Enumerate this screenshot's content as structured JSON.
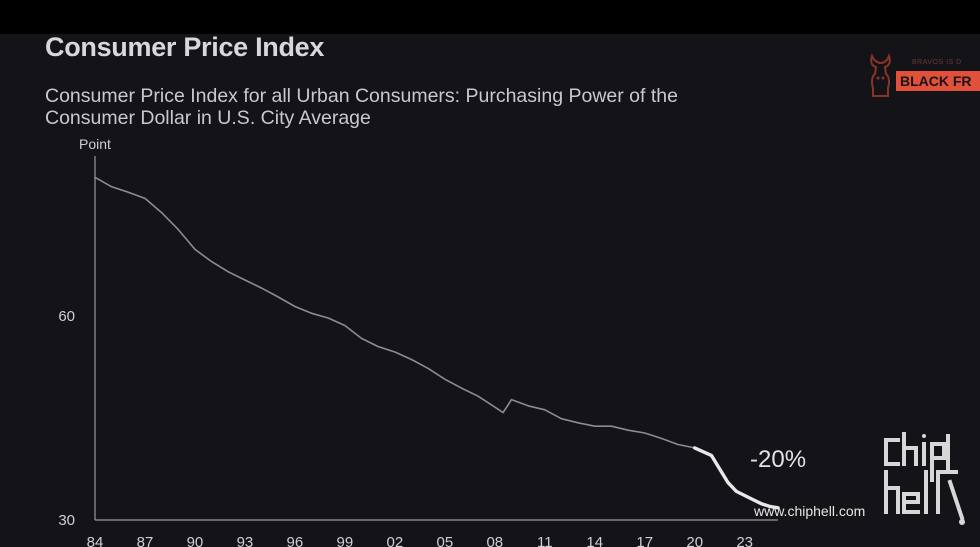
{
  "title": "Consumer Price Index",
  "subtitle": "Consumer Price Index for all Urban Consumers: Purchasing Power of the Consumer Dollar in U.S. City Average",
  "logo": {
    "small_text": "BRAVOS IS D",
    "banner_text": "BLACK FR"
  },
  "watermark": {
    "url": "www.chiphell.com",
    "mark_text": "chip hell"
  },
  "colors": {
    "background": "#141418",
    "line": "#8c8c90",
    "line_highlight": "#e8e8ea",
    "axis": "#9a9a9e",
    "text": "#d0d0d4",
    "logo_accent": "#e0503a"
  },
  "chart_data": {
    "type": "line",
    "title": "Consumer Price Index",
    "subtitle": "Consumer Price Index for all Urban Consumers: Purchasing Power of the Consumer Dollar in U.S. City Average",
    "ylabel": "Point",
    "xlabel": "",
    "yticks": [
      60,
      30
    ],
    "xticks": [
      "84",
      "87",
      "90",
      "93",
      "96",
      "99",
      "02",
      "05",
      "08",
      "11",
      "14",
      "17",
      "20",
      "23"
    ],
    "ylim": [
      30,
      80
    ],
    "xlim": [
      1984,
      2025
    ],
    "grid": false,
    "annotation": {
      "text": "-20%",
      "x": 2024,
      "y": 39
    },
    "series": [
      {
        "name": "",
        "x": [
          1984,
          1985,
          1986,
          1987,
          1988,
          1989,
          1990,
          1991,
          1992,
          1993,
          1994,
          1995,
          1996,
          1997,
          1998,
          1999,
          2000,
          2001,
          2002,
          2003,
          2004,
          2005,
          2006,
          2007,
          2008,
          2008.5,
          2009,
          2010,
          2011,
          2012,
          2013,
          2014,
          2015,
          2016,
          2017,
          2018,
          2019,
          2020
        ],
        "y": [
          80.4,
          79.0,
          78.2,
          77.3,
          75.2,
          72.7,
          69.8,
          68.0,
          66.5,
          65.3,
          64.1,
          62.8,
          61.4,
          60.4,
          59.7,
          58.6,
          56.7,
          55.5,
          54.7,
          53.6,
          52.3,
          50.7,
          49.4,
          48.2,
          46.6,
          45.8,
          47.7,
          46.8,
          46.2,
          44.9,
          44.3,
          43.8,
          43.8,
          43.2,
          42.8,
          42.0,
          41.1,
          40.6
        ]
      },
      {
        "name": "",
        "x": [
          2020,
          2021,
          2021.5,
          2022,
          2022.5,
          2023,
          2023.5,
          2024,
          2024.5,
          2025
        ],
        "y": [
          40.6,
          39.5,
          37.5,
          35.5,
          34.2,
          33.6,
          33.0,
          32.4,
          32.0,
          31.8
        ]
      }
    ]
  }
}
